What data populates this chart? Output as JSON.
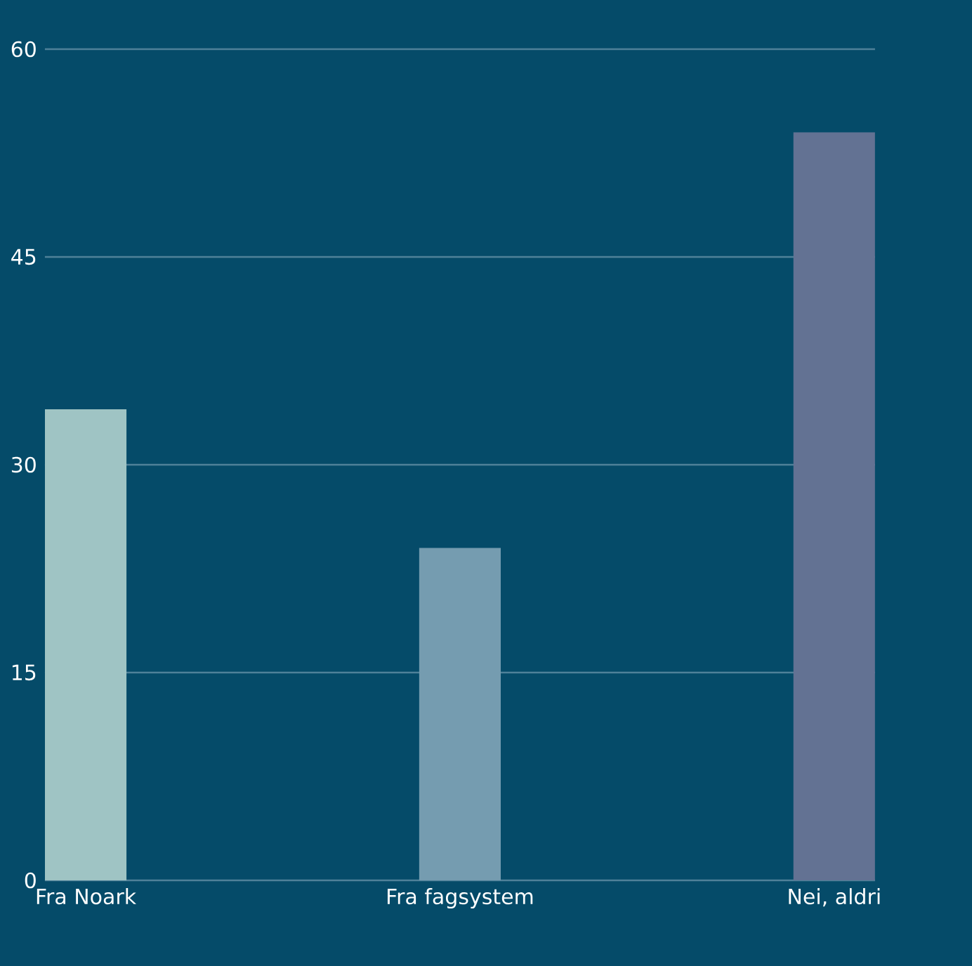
{
  "chart_data": {
    "type": "bar",
    "categories": [
      "Fra Noark",
      "Fra fagsystem",
      "Nei, aldri"
    ],
    "values": [
      34,
      24,
      54
    ],
    "colors": [
      "#9fc4c4",
      "#759cb0",
      "#637293"
    ],
    "ylim": [
      0,
      60
    ],
    "yticks": [
      0,
      15,
      30,
      45,
      60
    ],
    "grid": "y"
  }
}
